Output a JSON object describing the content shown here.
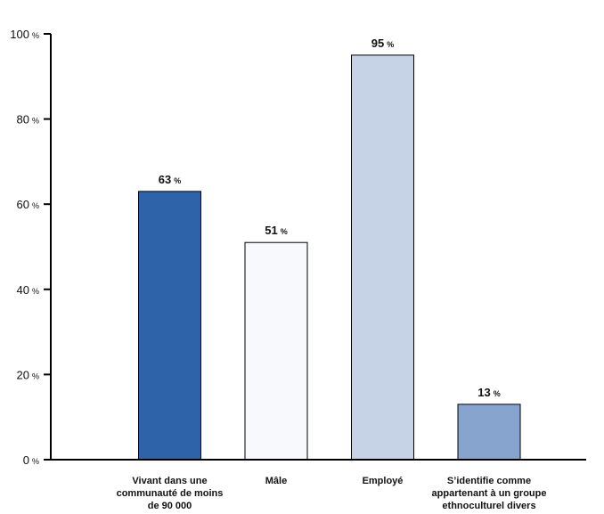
{
  "chart_data": {
    "type": "bar",
    "categories": [
      [
        "Vivant dans une",
        "communauté de moins",
        "de 90 000"
      ],
      [
        "Mâle"
      ],
      [
        "Employé"
      ],
      [
        "S’identifie comme",
        "appartenant à un groupe",
        "ethnoculturel divers"
      ]
    ],
    "values": [
      63,
      51,
      95,
      13
    ],
    "data_labels": [
      "63",
      "51",
      "95",
      "13"
    ],
    "value_unit": "%",
    "ylim": [
      0,
      100
    ],
    "yticks": [
      0,
      20,
      40,
      60,
      80,
      100
    ],
    "ytick_labels": [
      "0",
      "20",
      "40",
      "60",
      "80",
      "100"
    ],
    "colors": [
      "#2E63AA",
      "#F7F9FC",
      "#C6D3E6",
      "#87A4CE"
    ],
    "grid": false,
    "legend": "none",
    "title": "",
    "xlabel": "",
    "ylabel": ""
  }
}
